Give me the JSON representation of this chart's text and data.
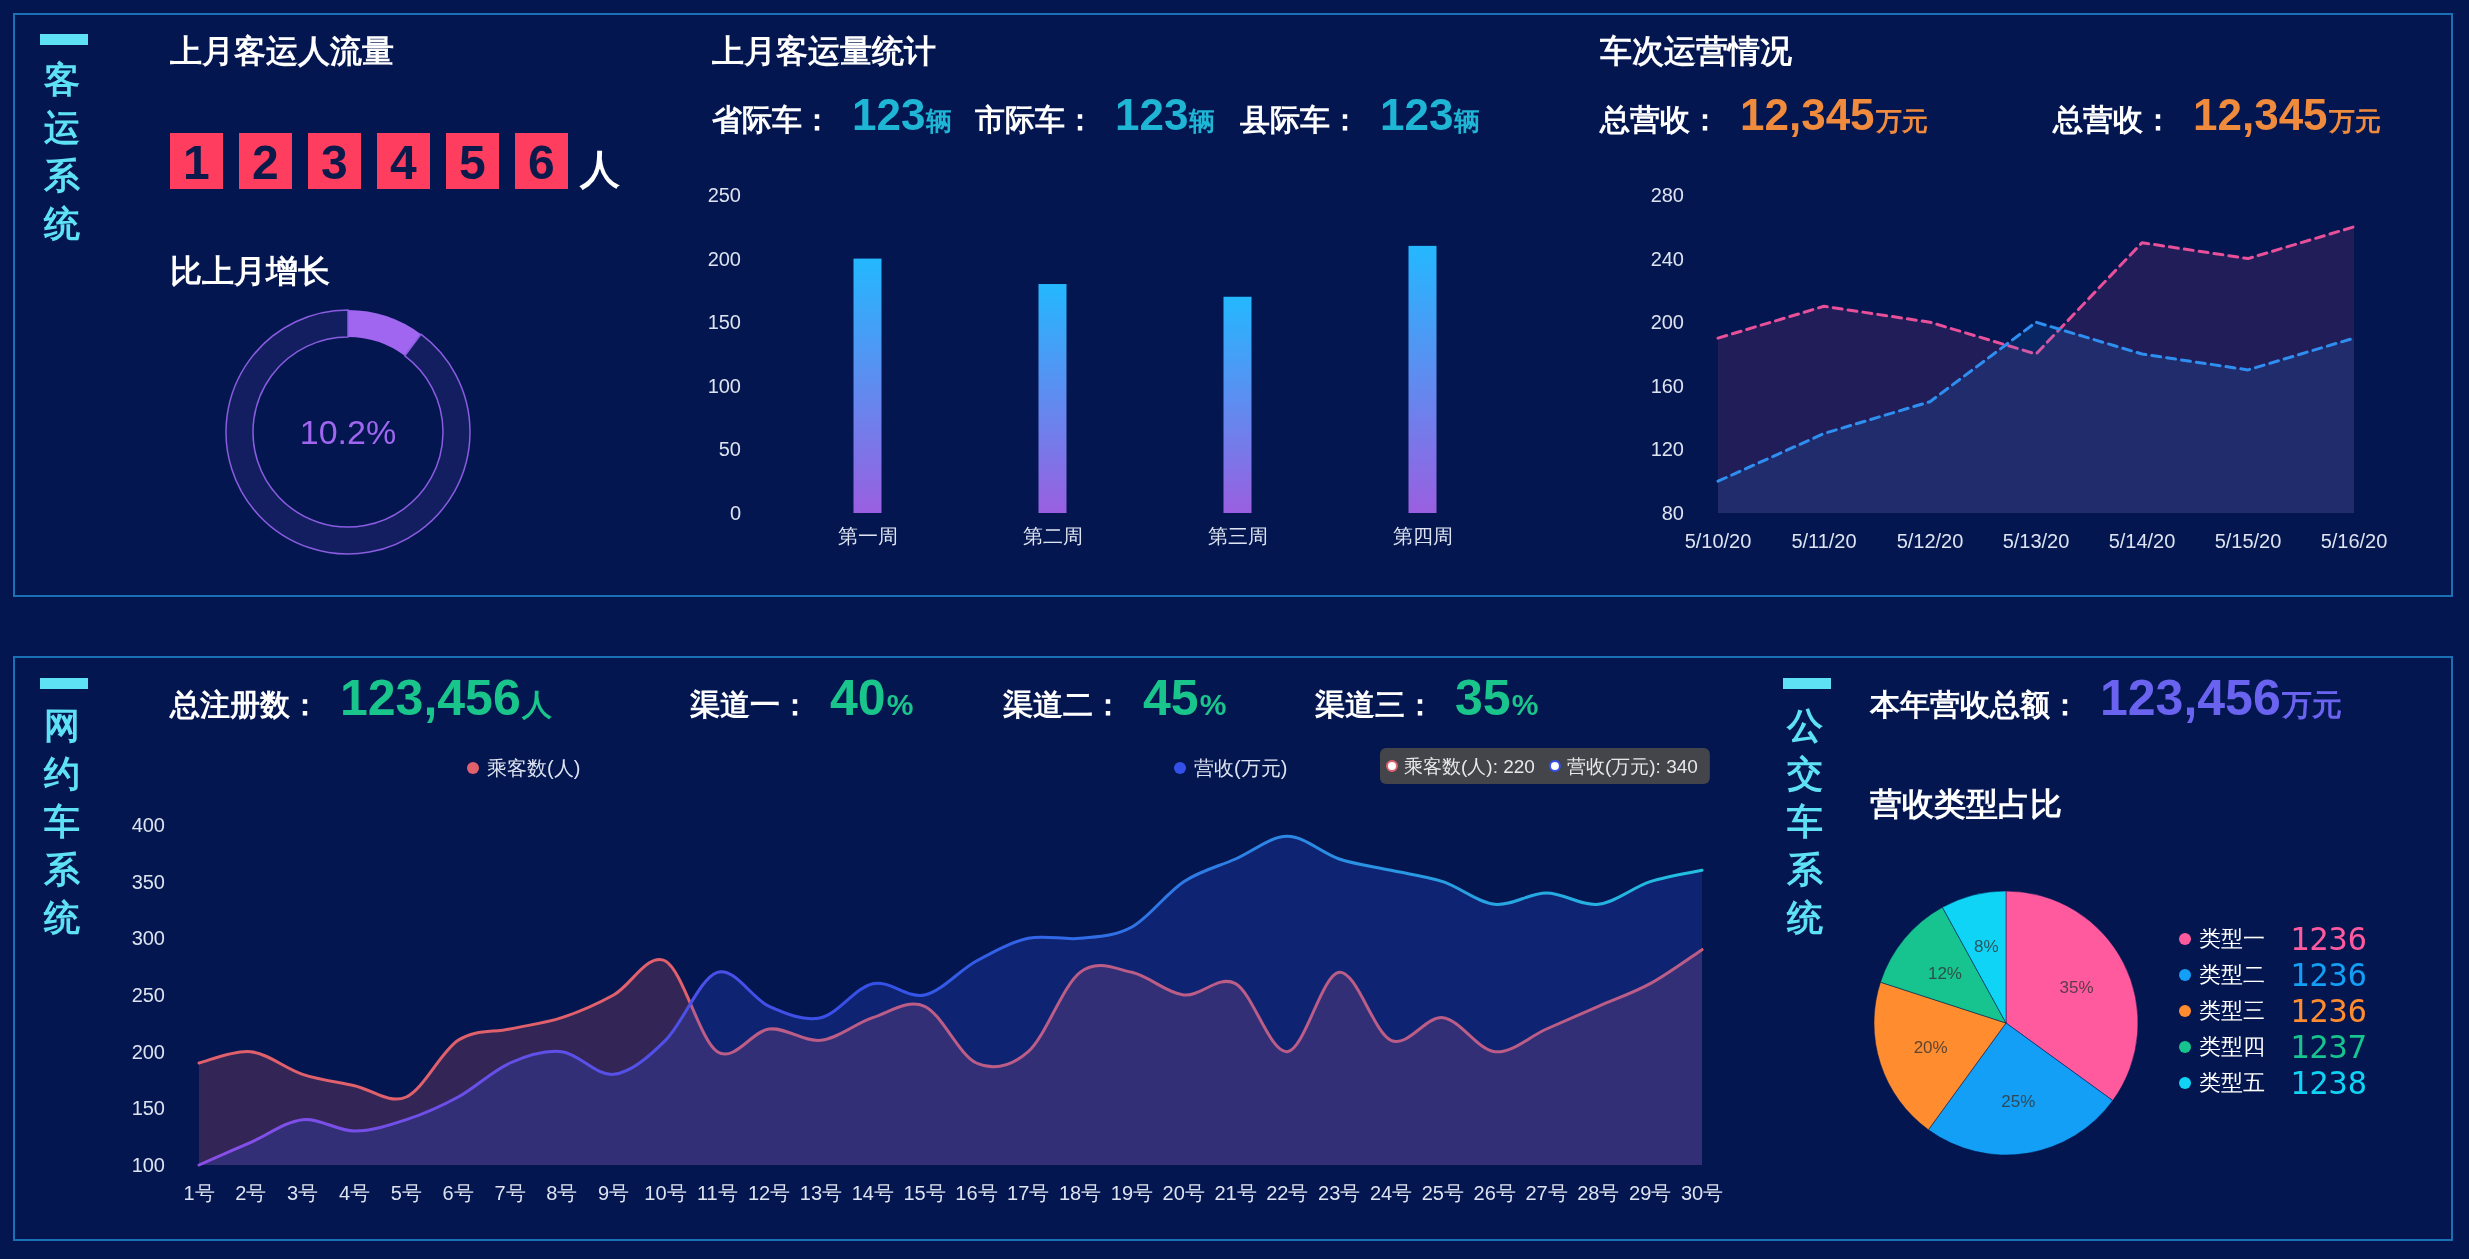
{
  "chart_data": [
    {
      "type": "other",
      "title": "上月客运人流量",
      "annotations": [
        "客运系统",
        "123456人"
      ]
    },
    {
      "type": "donut",
      "title": "比上月增长",
      "categories": [
        null,
        null
      ],
      "values": [
        10.2,
        89.8
      ],
      "colors": [
        "#a066f0",
        "#8a5ce0"
      ],
      "value_labels": [
        "10.2%",
        null
      ]
    },
    {
      "type": "bar",
      "title": "上月客运量统计",
      "annotations": [
        "省际车： 123辆",
        "市际车： 123辆",
        "县际车： 123辆"
      ],
      "categories": [
        "第一周",
        "第二周",
        "第三周",
        "第四周"
      ],
      "values": [
        200,
        180,
        170,
        210
      ],
      "color": "#24b8ff",
      "ylim": [
        0,
        250
      ],
      "yticks": [
        0,
        50,
        100,
        150,
        200,
        250
      ]
    },
    {
      "type": "area",
      "title": "车次运营情况",
      "annotations": [
        "总营收： 12,345万元",
        "总营收： 12,345万元"
      ],
      "categories": [
        "5/10/20",
        "5/11/20",
        "5/12/20",
        "5/13/20",
        "5/14/20",
        "5/15/20",
        "5/16/20"
      ],
      "series": [
        {
          "color": "#e8509a",
          "values": [
            190,
            210,
            200,
            180,
            250,
            240,
            260
          ]
        },
        {
          "color": "#2f8ff0",
          "values": [
            100,
            130,
            150,
            200,
            180,
            170,
            190
          ]
        }
      ],
      "ylim": [
        80,
        280
      ],
      "yticks": [
        80,
        120,
        160,
        200,
        240,
        280
      ],
      "line_style": "dashed"
    },
    {
      "type": "area",
      "annotations": [
        "网约车系统",
        "总注册数： 123,456人",
        "渠道一： 40%",
        "渠道二： 45%",
        "渠道三： 35%",
        "乘客数(人): 220",
        "营收(万元): 340"
      ],
      "categories": [
        "1号",
        "2号",
        "3号",
        "4号",
        "5号",
        "6号",
        "7号",
        "8号",
        "9号",
        "10号",
        "11号",
        "12号",
        "13号",
        "14号",
        "15号",
        "16号",
        "17号",
        "18号",
        "19号",
        "20号",
        "21号",
        "22号",
        "23号",
        "24号",
        "25号",
        "26号",
        "27号",
        "28号",
        "29号",
        "30号"
      ],
      "series": [
        {
          "name": "乘客数(人)",
          "color": "#e0606c",
          "values": [
            190,
            200,
            180,
            170,
            160,
            210,
            220,
            230,
            250,
            280,
            200,
            220,
            210,
            230,
            240,
            190,
            200,
            270,
            270,
            250,
            260,
            200,
            270,
            210,
            230,
            200,
            220,
            240,
            260,
            290
          ]
        },
        {
          "name": "营收(万元)",
          "color": "#3550e8",
          "values": [
            100,
            120,
            140,
            130,
            140,
            160,
            190,
            200,
            180,
            210,
            270,
            240,
            230,
            260,
            250,
            280,
            300,
            300,
            310,
            350,
            370,
            390,
            370,
            360,
            350,
            330,
            340,
            330,
            350,
            360
          ]
        }
      ],
      "ylim": [
        100,
        400
      ],
      "yticks": [
        100,
        150,
        200,
        250,
        300,
        350,
        400
      ],
      "legend": "top",
      "line_style": "solid"
    },
    {
      "type": "pie",
      "title": "营收类型占比",
      "annotations": [
        "公交车系统",
        "本年营收总额： 123,456万元",
        "1236",
        "1236",
        "1236",
        "1237",
        "1238"
      ],
      "categories": [
        "类型一",
        "类型二",
        "类型三",
        "类型四",
        "类型五"
      ],
      "values": [
        35,
        25,
        20,
        12,
        8
      ],
      "value_labels": [
        "35%",
        "25%",
        "20%",
        "12%",
        "8%"
      ],
      "colors": [
        "#ff5a9e",
        "#139ff5",
        "#ff8c2e",
        "#17c38e",
        "#0fd4f5"
      ],
      "legend": "right"
    }
  ]
}
